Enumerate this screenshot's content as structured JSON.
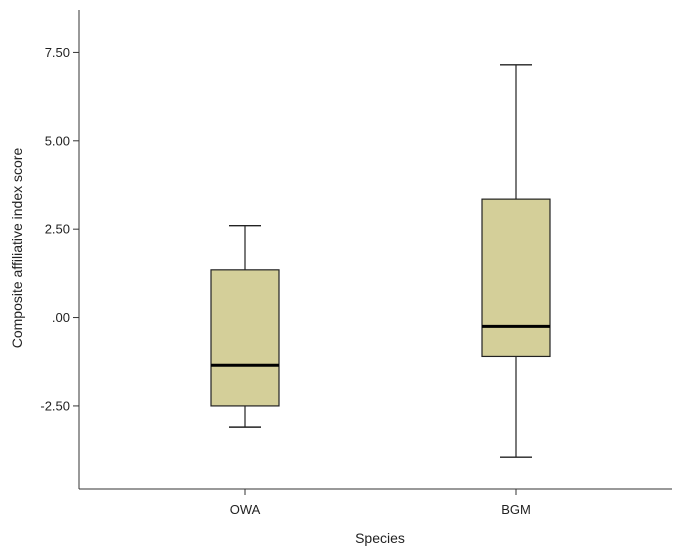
{
  "chart_data": {
    "type": "box",
    "xlabel": "Species",
    "ylabel": "Composite affiliative index score",
    "ylim": [
      -4.85,
      8.7
    ],
    "yticks": [
      -2.5,
      0,
      2.5,
      5,
      7.5
    ],
    "ytick_labels": [
      "-2.50",
      ".00",
      "2.50",
      "5.00",
      "7.50"
    ],
    "grid": false,
    "categories": [
      "OWA",
      "BGM"
    ],
    "boxes": [
      {
        "category": "OWA",
        "min": -3.1,
        "q1": -2.5,
        "median": -1.35,
        "q3": 1.35,
        "max": 2.6
      },
      {
        "category": "BGM",
        "min": -3.95,
        "q1": -1.1,
        "median": -0.25,
        "q3": 3.35,
        "max": 7.15
      }
    ],
    "colors": {
      "box_fill": "#d4cf99",
      "stroke": "#222222",
      "median": "#000000"
    }
  }
}
